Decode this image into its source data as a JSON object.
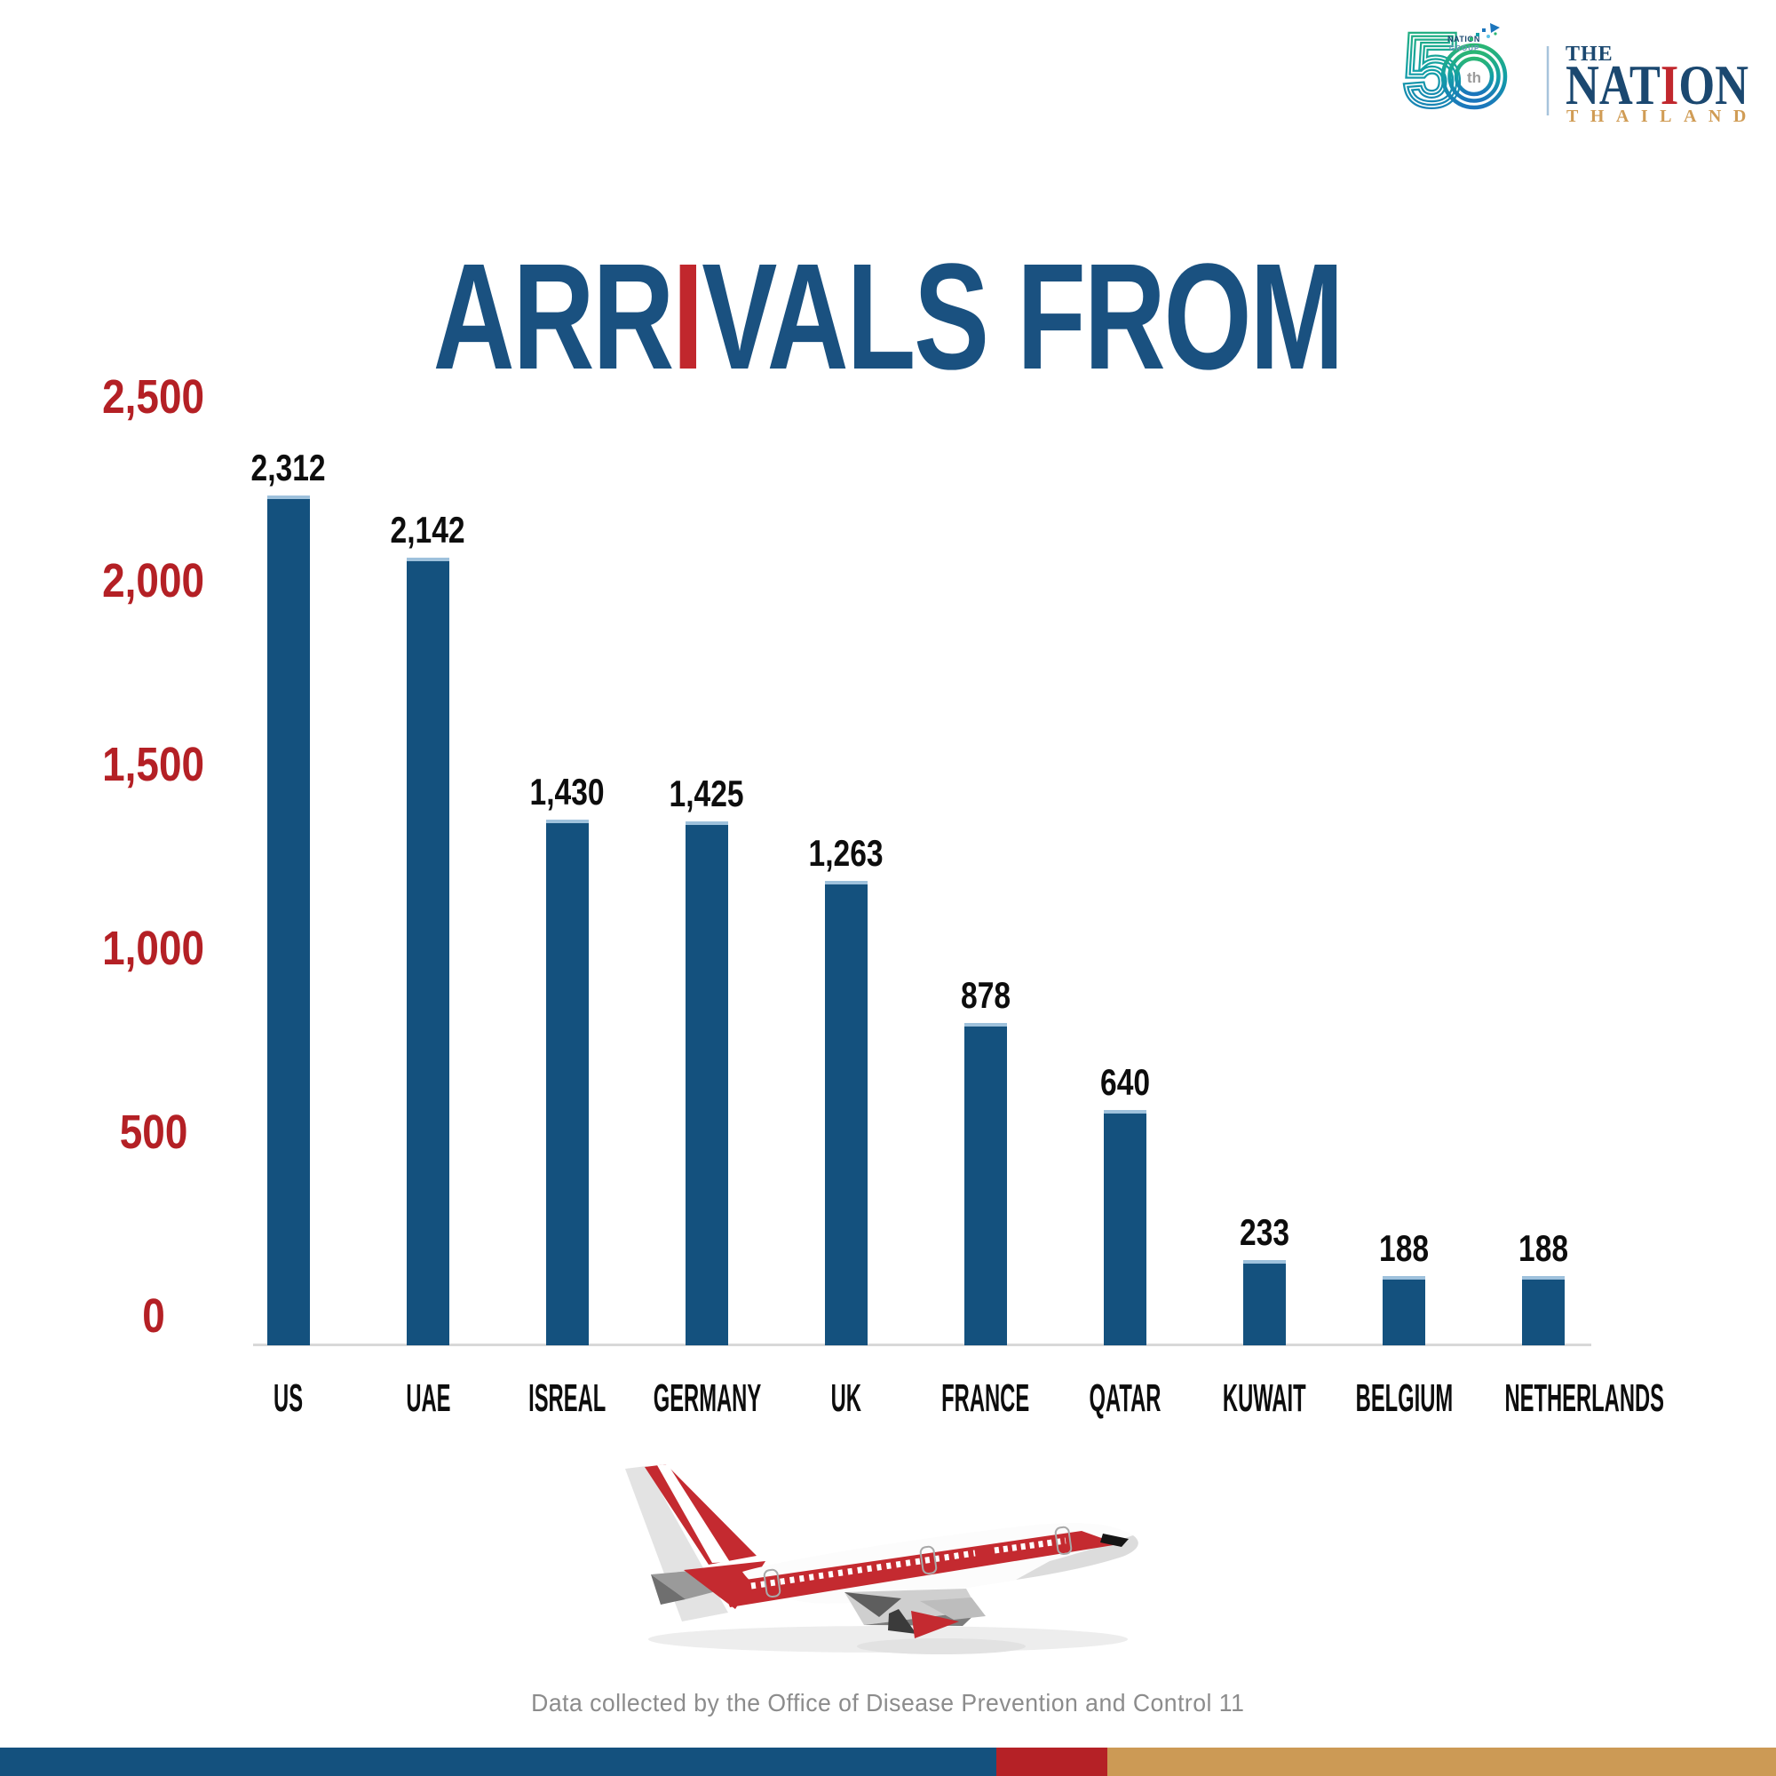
{
  "brand": {
    "fifty_number": "5",
    "fifty_suffix": "th",
    "group_line1": "NATION",
    "group_line2": "GROUP",
    "the": "THE",
    "nation_pre": "NAT",
    "nation_accent": "I",
    "nation_post": "ON",
    "thailand": "THAILAND"
  },
  "title": {
    "pre": "ARR",
    "accent": "I",
    "post": "VALS FROM"
  },
  "chart_data": {
    "type": "bar",
    "title": "ARRIVALS FROM",
    "categories": [
      "US",
      "UAE",
      "ISREAL",
      "GERMANY",
      "UK",
      "FRANCE",
      "QATAR",
      "KUWAIT",
      "BELGIUM",
      "NETHERLANDS"
    ],
    "values": [
      2312,
      2142,
      1430,
      1425,
      1263,
      878,
      640,
      233,
      188,
      188
    ],
    "value_labels": [
      "2,312",
      "2,142",
      "1,430",
      "1,425",
      "1,263",
      "878",
      "640",
      "233",
      "188",
      "188"
    ],
    "y_ticks": [
      {
        "value": 2500,
        "label": "2,500"
      },
      {
        "value": 2000,
        "label": "2,000"
      },
      {
        "value": 1500,
        "label": "1,500"
      },
      {
        "value": 1000,
        "label": "1,000"
      },
      {
        "value": 500,
        "label": "500"
      },
      {
        "value": 0,
        "label": "0"
      }
    ],
    "ylim": [
      0,
      2500
    ],
    "grid": false,
    "legend": false,
    "xlabel": "",
    "ylabel": "",
    "bar_color": "#14517E",
    "tick_color": "#B42025",
    "value_label_color": "#0D0D0D"
  },
  "footer": {
    "source": "Data collected by the Office of Disease Prevention and Control 11"
  },
  "colors": {
    "title_navy": "#1A5180",
    "accent_red": "#C1272D",
    "axis_red": "#B42025",
    "bar_blue": "#14517E",
    "baseline_gray": "#D8D8D8",
    "footer_gray": "#8C8C8C",
    "nation_navy": "#1B4870",
    "thailand_gold": "#D09C55",
    "bottom_bar": {
      "blue": "#14517E",
      "red": "#B52126",
      "gold": "#CC9A55"
    }
  }
}
